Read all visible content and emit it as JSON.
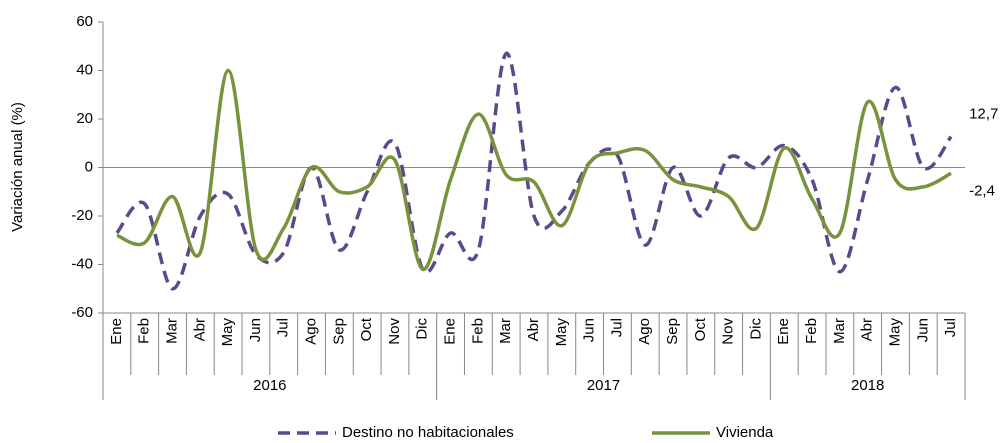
{
  "chart_data": {
    "type": "line",
    "y_axis_label": "Variación anual (%)",
    "categories": [
      "Ene",
      "Feb",
      "Mar",
      "Abr",
      "May",
      "Jun",
      "Jul",
      "Ago",
      "Sep",
      "Oct",
      "Nov",
      "Dic",
      "Ene",
      "Feb",
      "Mar",
      "Abr",
      "May",
      "Jun",
      "Jul",
      "Ago",
      "Sep",
      "Oct",
      "Nov",
      "Dic",
      "Ene",
      "Feb",
      "Mar",
      "Abr",
      "May",
      "Jun",
      "Jul"
    ],
    "years": [
      "2016",
      "2017",
      "2018"
    ],
    "series": [
      {
        "name": "Destino no habitacionales",
        "color": "#5b4a8b",
        "dashed": true,
        "values": [
          -27,
          -15,
          -50,
          -20,
          -11,
          -36,
          -35,
          0,
          -34,
          -10,
          10,
          -42,
          -27,
          -34,
          47,
          -20,
          -18,
          2,
          5,
          -32,
          0,
          -20,
          4,
          0,
          9,
          -5,
          -43,
          -5,
          33,
          0,
          12.7
        ],
        "value_labels": [
          null,
          null,
          null,
          null,
          null,
          null,
          null,
          null,
          null,
          null,
          null,
          null,
          null,
          null,
          null,
          null,
          null,
          null,
          null,
          null,
          null,
          null,
          null,
          null,
          null,
          null,
          null,
          null,
          null,
          null,
          "12,7"
        ]
      },
      {
        "name": "Vivienda",
        "color": "#77933c",
        "dashed": false,
        "values": [
          -28,
          -31,
          -12,
          -35,
          40,
          -34,
          -25,
          0,
          -10,
          -8,
          3,
          -42,
          -5,
          22,
          -3,
          -6,
          -24,
          2,
          6,
          7,
          -5,
          -8,
          -12,
          -25,
          8,
          -13,
          -27,
          27,
          -5,
          -8,
          -2.4
        ],
        "value_labels": [
          null,
          null,
          null,
          null,
          null,
          null,
          null,
          null,
          null,
          null,
          null,
          null,
          null,
          null,
          null,
          null,
          null,
          null,
          null,
          null,
          null,
          null,
          null,
          null,
          null,
          null,
          null,
          null,
          null,
          null,
          "-2,4"
        ]
      }
    ],
    "ylim": [
      -60,
      60
    ],
    "yticks": [
      -60,
      -40,
      -20,
      0,
      20,
      40,
      60
    ],
    "legend": "bottom"
  }
}
